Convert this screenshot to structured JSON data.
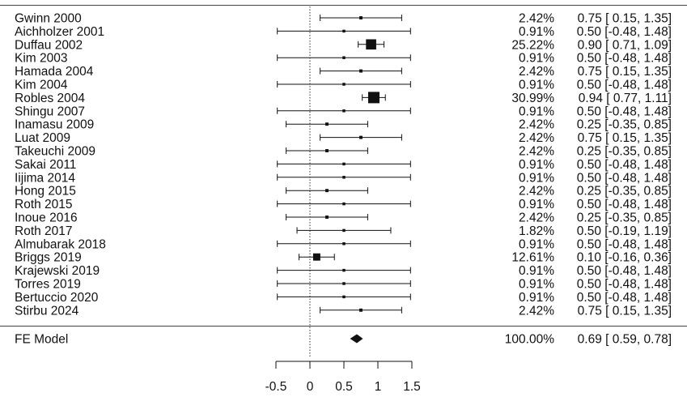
{
  "chart_data": {
    "type": "forest",
    "xlim": [
      -0.5,
      1.5
    ],
    "xticks": [
      "-0.5",
      "0",
      "0.5",
      "1",
      "1.5"
    ],
    "reference_line": 0,
    "studies": [
      {
        "label": "Gwinn 2000",
        "weight": "2.42%",
        "est": 0.75,
        "lo": 0.15,
        "hi": 1.35,
        "ci_text": "0.75 [ 0.15, 1.35]"
      },
      {
        "label": "Aichholzer 2001",
        "weight": "0.91%",
        "est": 0.5,
        "lo": -0.48,
        "hi": 1.48,
        "ci_text": "0.50 [-0.48, 1.48]"
      },
      {
        "label": "Duffau 2002",
        "weight": "25.22%",
        "est": 0.9,
        "lo": 0.71,
        "hi": 1.09,
        "ci_text": "0.90 [ 0.71, 1.09]"
      },
      {
        "label": "Kim 2003",
        "weight": "0.91%",
        "est": 0.5,
        "lo": -0.48,
        "hi": 1.48,
        "ci_text": "0.50 [-0.48, 1.48]"
      },
      {
        "label": "Hamada 2004",
        "weight": "2.42%",
        "est": 0.75,
        "lo": 0.15,
        "hi": 1.35,
        "ci_text": "0.75 [ 0.15, 1.35]"
      },
      {
        "label": "Kim 2004",
        "weight": "0.91%",
        "est": 0.5,
        "lo": -0.48,
        "hi": 1.48,
        "ci_text": "0.50 [-0.48, 1.48]"
      },
      {
        "label": "Robles 2004",
        "weight": "30.99%",
        "est": 0.94,
        "lo": 0.77,
        "hi": 1.11,
        "ci_text": "0.94 [ 0.77, 1.11]"
      },
      {
        "label": "Shingu 2007",
        "weight": "0.91%",
        "est": 0.5,
        "lo": -0.48,
        "hi": 1.48,
        "ci_text": "0.50 [-0.48, 1.48]"
      },
      {
        "label": "Inamasu 2009",
        "weight": "2.42%",
        "est": 0.25,
        "lo": -0.35,
        "hi": 0.85,
        "ci_text": "0.25 [-0.35, 0.85]"
      },
      {
        "label": "Luat 2009",
        "weight": "2.42%",
        "est": 0.75,
        "lo": 0.15,
        "hi": 1.35,
        "ci_text": "0.75 [ 0.15, 1.35]"
      },
      {
        "label": "Takeuchi 2009",
        "weight": "2.42%",
        "est": 0.25,
        "lo": -0.35,
        "hi": 0.85,
        "ci_text": "0.25 [-0.35, 0.85]"
      },
      {
        "label": "Sakai 2011",
        "weight": "0.91%",
        "est": 0.5,
        "lo": -0.48,
        "hi": 1.48,
        "ci_text": "0.50 [-0.48, 1.48]"
      },
      {
        "label": "Iijima 2014",
        "weight": "0.91%",
        "est": 0.5,
        "lo": -0.48,
        "hi": 1.48,
        "ci_text": "0.50 [-0.48, 1.48]"
      },
      {
        "label": "Hong 2015",
        "weight": "2.42%",
        "est": 0.25,
        "lo": -0.35,
        "hi": 0.85,
        "ci_text": "0.25 [-0.35, 0.85]"
      },
      {
        "label": "Roth 2015",
        "weight": "0.91%",
        "est": 0.5,
        "lo": -0.48,
        "hi": 1.48,
        "ci_text": "0.50 [-0.48, 1.48]"
      },
      {
        "label": "Inoue 2016",
        "weight": "2.42%",
        "est": 0.25,
        "lo": -0.35,
        "hi": 0.85,
        "ci_text": "0.25 [-0.35, 0.85]"
      },
      {
        "label": "Roth 2017",
        "weight": "1.82%",
        "est": 0.5,
        "lo": -0.19,
        "hi": 1.19,
        "ci_text": "0.50 [-0.19, 1.19]"
      },
      {
        "label": "Almubarak 2018",
        "weight": "0.91%",
        "est": 0.5,
        "lo": -0.48,
        "hi": 1.48,
        "ci_text": "0.50 [-0.48, 1.48]"
      },
      {
        "label": "Briggs 2019",
        "weight": "12.61%",
        "est": 0.1,
        "lo": -0.16,
        "hi": 0.36,
        "ci_text": "0.10 [-0.16, 0.36]"
      },
      {
        "label": "Krajewski 2019",
        "weight": "0.91%",
        "est": 0.5,
        "lo": -0.48,
        "hi": 1.48,
        "ci_text": "0.50 [-0.48, 1.48]"
      },
      {
        "label": "Torres 2019",
        "weight": "0.91%",
        "est": 0.5,
        "lo": -0.48,
        "hi": 1.48,
        "ci_text": "0.50 [-0.48, 1.48]"
      },
      {
        "label": "Bertuccio 2020",
        "weight": "0.91%",
        "est": 0.5,
        "lo": -0.48,
        "hi": 1.48,
        "ci_text": "0.50 [-0.48, 1.48]"
      },
      {
        "label": "Stirbu 2024",
        "weight": "2.42%",
        "est": 0.75,
        "lo": 0.15,
        "hi": 1.35,
        "ci_text": "0.75 [ 0.15, 1.35]"
      }
    ],
    "summary": {
      "label": "FE Model",
      "weight": "100.00%",
      "est": 0.69,
      "lo": 0.59,
      "hi": 0.78,
      "ci_text": "0.69 [ 0.59, 0.78]"
    }
  }
}
